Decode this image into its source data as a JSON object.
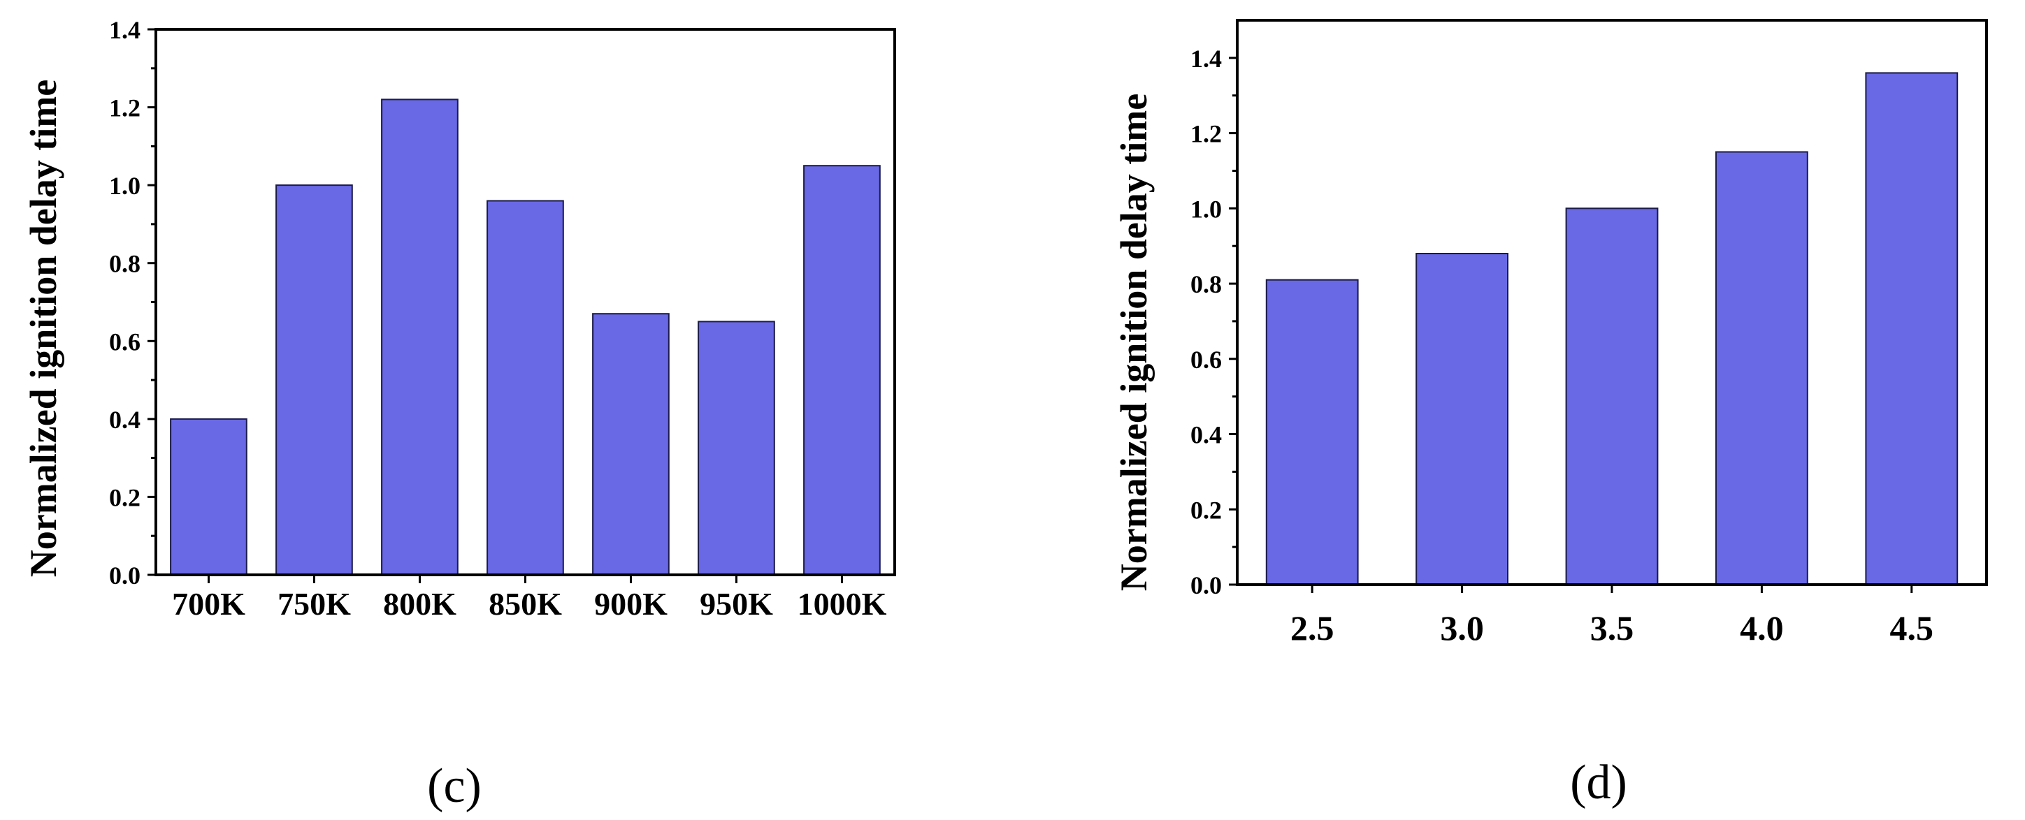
{
  "chart_data": [
    {
      "type": "bar",
      "panel_label": "(c)",
      "categories": [
        "700K",
        "750K",
        "800K",
        "850K",
        "900K",
        "950K",
        "1000K"
      ],
      "values": [
        0.4,
        1.0,
        1.22,
        0.96,
        0.67,
        0.65,
        1.05
      ],
      "title": "",
      "xlabel": "",
      "ylabel": "Normalized ignition delay time",
      "ylim": [
        0,
        1.4
      ],
      "yticks": [
        "0.0",
        "0.2",
        "0.4",
        "0.6",
        "0.8",
        "1.0",
        "1.2",
        "1.4"
      ],
      "grid": false,
      "bar_color": "#6969e6"
    },
    {
      "type": "bar",
      "panel_label": "(d)",
      "categories": [
        "2.5",
        "3.0",
        "3.5",
        "4.0",
        "4.5"
      ],
      "values": [
        0.81,
        0.88,
        1.0,
        1.15,
        1.36
      ],
      "title": "",
      "xlabel": "",
      "ylabel": "Normalized ignition delay time",
      "ylim": [
        0,
        1.5
      ],
      "yticks": [
        "0.0",
        "0.2",
        "0.4",
        "0.6",
        "0.8",
        "1.0",
        "1.2",
        "1.4"
      ],
      "grid": false,
      "bar_color": "#6969e6"
    }
  ]
}
